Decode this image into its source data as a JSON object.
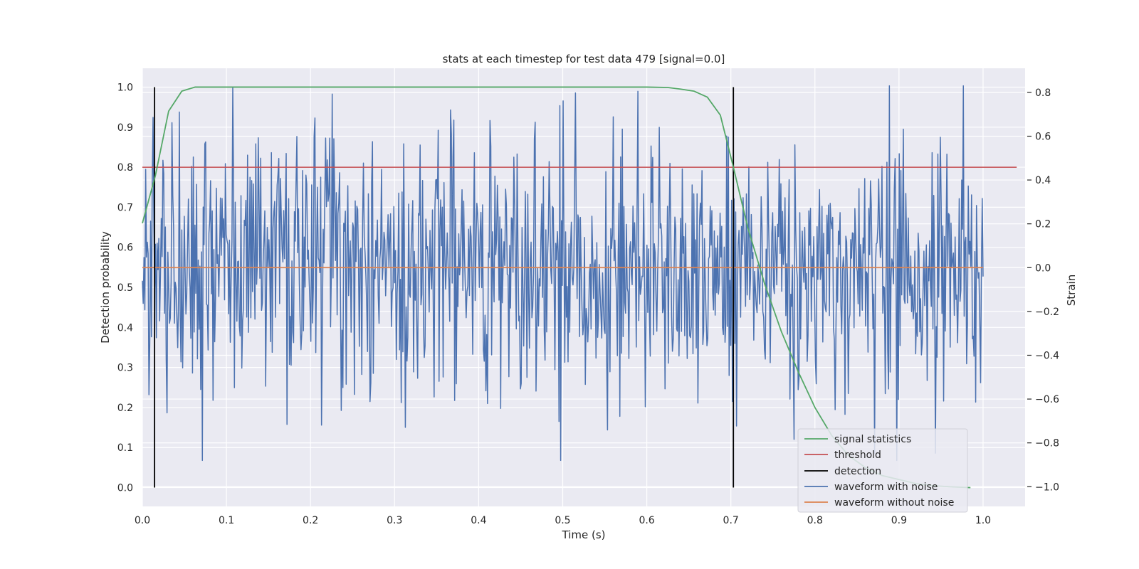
{
  "chart_data": {
    "type": "line",
    "title": "stats at each timestep for test data 479 [signal=0.0]",
    "xlabel": "Time (s)",
    "ylabel": "Detection probability",
    "y2label": "Strain",
    "xlim": [
      0.0,
      1.05
    ],
    "ylim": [
      -0.047,
      1.047
    ],
    "y2lim": [
      -1.09,
      0.91
    ],
    "x_ticks": [
      0.0,
      0.1,
      0.2,
      0.3,
      0.4,
      0.5,
      0.6,
      0.7,
      0.8,
      0.9,
      1.0
    ],
    "x_tick_labels": [
      "0.0",
      "0.1",
      "0.2",
      "0.3",
      "0.4",
      "0.5",
      "0.6",
      "0.7",
      "0.8",
      "0.9",
      "1.0"
    ],
    "y_ticks": [
      0.0,
      0.1,
      0.2,
      0.3,
      0.4,
      0.5,
      0.6,
      0.7,
      0.8,
      0.9,
      1.0
    ],
    "y_tick_labels": [
      "0.0",
      "0.1",
      "0.2",
      "0.3",
      "0.4",
      "0.5",
      "0.6",
      "0.7",
      "0.8",
      "0.9",
      "1.0"
    ],
    "y2_ticks": [
      -1.0,
      -0.8,
      -0.6,
      -0.4,
      -0.2,
      0.0,
      0.2,
      0.4,
      0.6,
      0.8
    ],
    "y2_tick_labels": [
      "−1.0",
      "−0.8",
      "−0.6",
      "−0.4",
      "−0.2",
      "0.0",
      "0.2",
      "0.4",
      "0.6",
      "0.8"
    ],
    "grid": true,
    "legend_position": "bottom-right",
    "series": [
      {
        "name": "signal statistics",
        "color": "#55a868",
        "axis": "left",
        "x": [
          0.0,
          0.0156,
          0.03125,
          0.0469,
          0.0625,
          0.078,
          0.1,
          0.2,
          0.3,
          0.4,
          0.5,
          0.6,
          0.625,
          0.64,
          0.656,
          0.672,
          0.6875,
          0.703,
          0.72,
          0.74,
          0.76,
          0.78,
          0.8,
          0.82,
          0.84,
          0.86,
          0.88,
          0.9,
          0.92,
          0.94,
          0.96,
          0.985
        ],
        "y": [
          0.66,
          0.78,
          0.94,
          0.99,
          1.0,
          1.0,
          1.0,
          1.0,
          1.0,
          1.0,
          1.0,
          1.0,
          0.999,
          0.995,
          0.99,
          0.975,
          0.93,
          0.8,
          0.65,
          0.51,
          0.39,
          0.29,
          0.2,
          0.13,
          0.08,
          0.05,
          0.03,
          0.02,
          0.01,
          0.005,
          0.002,
          0.0
        ]
      },
      {
        "name": "threshold",
        "color": "#c44e52",
        "axis": "left",
        "x": [
          0.0,
          1.04
        ],
        "y": [
          0.8,
          0.8
        ]
      },
      {
        "name": "detection",
        "color": "#000000",
        "axis": "left",
        "x_positions": [
          0.0145,
          0.703
        ],
        "y": [
          0.0,
          1.0
        ]
      },
      {
        "name": "waveform with noise",
        "color": "#4c72b0",
        "axis": "right",
        "x_range": [
          0.0,
          1.0
        ],
        "n_points": 1024,
        "y_std": 0.3,
        "y_extrema": [
          -0.88,
          0.83
        ]
      },
      {
        "name": "waveform without noise",
        "color": "#dd8452",
        "axis": "right",
        "x": [
          0.0,
          1.0
        ],
        "y": [
          0.0,
          0.0
        ]
      }
    ]
  },
  "legend": {
    "items": [
      "signal statistics",
      "threshold",
      "detection",
      "waveform with noise",
      "waveform without noise"
    ]
  }
}
